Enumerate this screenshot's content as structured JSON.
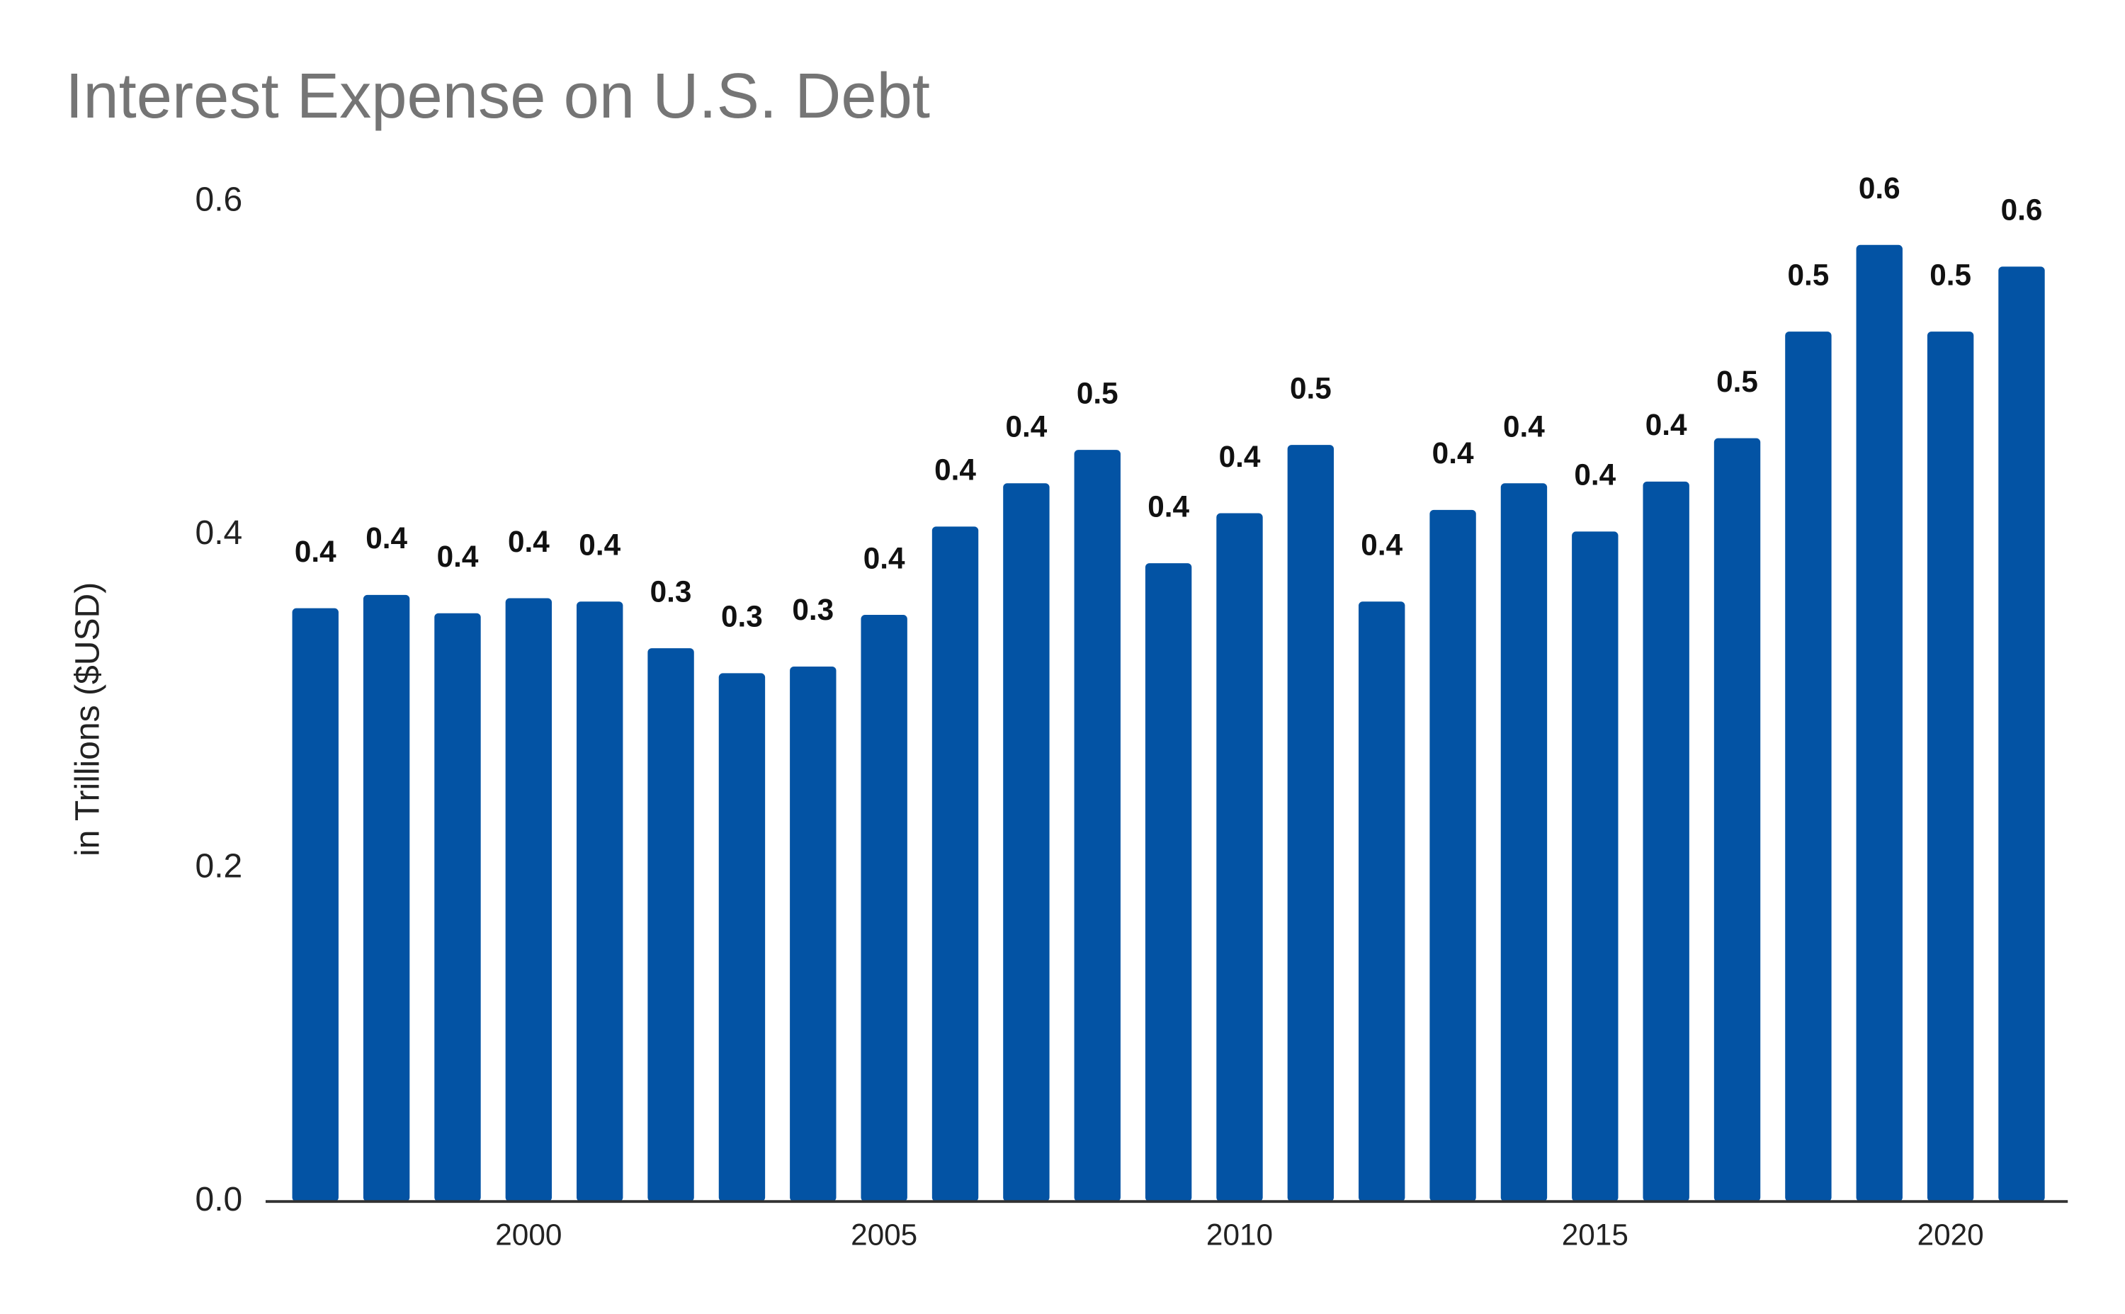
{
  "chart_data": {
    "type": "bar",
    "title": "Interest Expense on U.S. Debt",
    "y_label": "in Trillions ($USD)",
    "x": [
      1997,
      1998,
      1999,
      2000,
      2001,
      2002,
      2003,
      2004,
      2005,
      2006,
      2007,
      2008,
      2009,
      2010,
      2011,
      2012,
      2013,
      2014,
      2015,
      2016,
      2017,
      2018,
      2019,
      2020,
      2021
    ],
    "values": [
      0.356,
      0.364,
      0.353,
      0.362,
      0.36,
      0.332,
      0.317,
      0.321,
      0.352,
      0.405,
      0.431,
      0.451,
      0.383,
      0.413,
      0.454,
      0.36,
      0.415,
      0.431,
      0.402,
      0.432,
      0.458,
      0.522,
      0.574,
      0.522,
      0.561
    ],
    "value_labels": [
      "0.4",
      "0.4",
      "0.4",
      "0.4",
      "0.4",
      "0.3",
      "0.3",
      "0.3",
      "0.4",
      "0.4",
      "0.4",
      "0.5",
      "0.4",
      "0.4",
      "0.5",
      "0.4",
      "0.4",
      "0.4",
      "0.4",
      "0.4",
      "0.5",
      "0.5",
      "0.6",
      "0.5",
      "0.6"
    ],
    "color": "#0353a4",
    "xlim": [
      1996.3,
      2021.65
    ],
    "xticks": [
      2000,
      2005,
      2010,
      2015,
      2020
    ],
    "ylim": [
      0,
      0.6
    ],
    "yticks": [
      {
        "value": 0,
        "label": "0.0"
      },
      0.2,
      0.4,
      0.6
    ],
    "grid": false
  }
}
